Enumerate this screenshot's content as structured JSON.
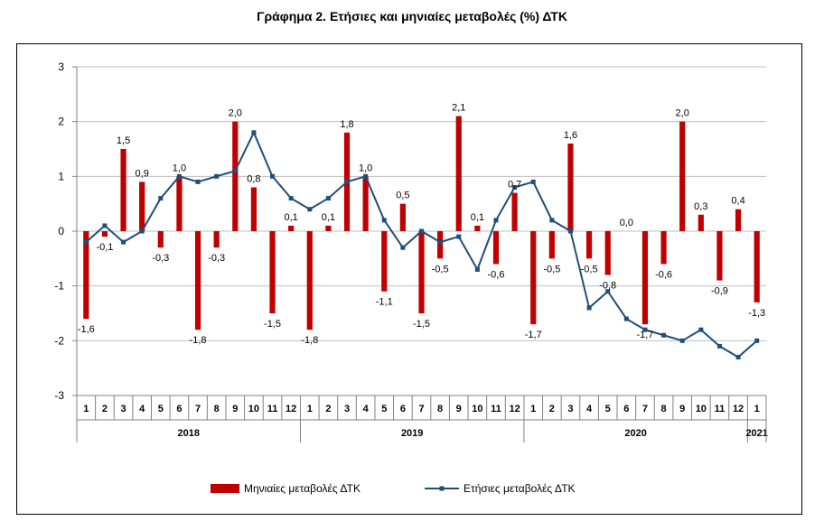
{
  "title": "Γράφημα 2. Ετήσιες και μηνιαίες μεταβολές (%) ΔΤΚ",
  "colors": {
    "bars": "#c00000",
    "line": "#1f4e79",
    "grid": "#bfbfbf",
    "axis": "#808080"
  },
  "chart_data": {
    "type": "bar+line",
    "categories": [
      "1",
      "2",
      "3",
      "4",
      "5",
      "6",
      "7",
      "8",
      "9",
      "10",
      "11",
      "12",
      "1",
      "2",
      "3",
      "4",
      "5",
      "6",
      "7",
      "8",
      "9",
      "10",
      "11",
      "12",
      "1",
      "2",
      "3",
      "4",
      "5",
      "6",
      "7",
      "8",
      "9",
      "10",
      "11",
      "12",
      "1"
    ],
    "year_groups": [
      {
        "label": "2018",
        "start": 0,
        "count": 12
      },
      {
        "label": "2019",
        "start": 12,
        "count": 12
      },
      {
        "label": "2020",
        "start": 24,
        "count": 12
      },
      {
        "label": "2021",
        "start": 36,
        "count": 1
      }
    ],
    "ylim": [
      -3,
      3
    ],
    "yticks": [
      3,
      2,
      1,
      0,
      -1,
      -2,
      -3
    ],
    "grid": "horizontal",
    "legend_position": "bottom",
    "series": [
      {
        "name": "Μηνιαίες μεταβολές ΔΤΚ",
        "type": "bar",
        "values": [
          -1.6,
          -0.1,
          1.5,
          0.9,
          -0.3,
          1.0,
          -1.8,
          -0.3,
          2.0,
          0.8,
          -1.5,
          0.1,
          -1.8,
          0.1,
          1.8,
          1.0,
          -1.1,
          0.5,
          -1.5,
          -0.5,
          2.1,
          0.1,
          -0.6,
          0.7,
          -1.7,
          -0.5,
          1.6,
          -0.5,
          -0.8,
          0.0,
          -1.7,
          -0.6,
          2.0,
          0.3,
          -0.9,
          0.4,
          -1.3
        ],
        "labels": [
          "-1,6",
          "-0,1",
          "1,5",
          "0,9",
          "-0,3",
          "1,0",
          "-1,8",
          "-0,3",
          "2,0",
          "0,8",
          "-1,5",
          "0,1",
          "-1,8",
          "0,1",
          "1,8",
          "1,0",
          "-1,1",
          "0,5",
          "-1,5",
          "-0,5",
          "2,1",
          "0,1",
          "-0,6",
          "0,7",
          "-1,7",
          "-0,5",
          "1,6",
          "-0,5",
          "-0,8",
          "0,0",
          "-1,7",
          "-0,6",
          "2,0",
          "0,3",
          "-0,9",
          "0,4",
          "-1,3"
        ]
      },
      {
        "name": "Ετήσιες μεταβολές ΔΤΚ",
        "type": "line",
        "values": [
          -0.2,
          0.1,
          -0.2,
          0.0,
          0.6,
          1.0,
          0.9,
          1.0,
          1.1,
          1.8,
          1.0,
          0.6,
          0.4,
          0.6,
          0.9,
          1.0,
          0.2,
          -0.3,
          0.0,
          -0.2,
          -0.1,
          -0.7,
          0.2,
          0.8,
          0.9,
          0.2,
          0.0,
          -1.4,
          -1.1,
          -1.6,
          -1.8,
          -1.9,
          -2.0,
          -1.8,
          -2.1,
          -2.3,
          -2.0
        ]
      }
    ]
  }
}
